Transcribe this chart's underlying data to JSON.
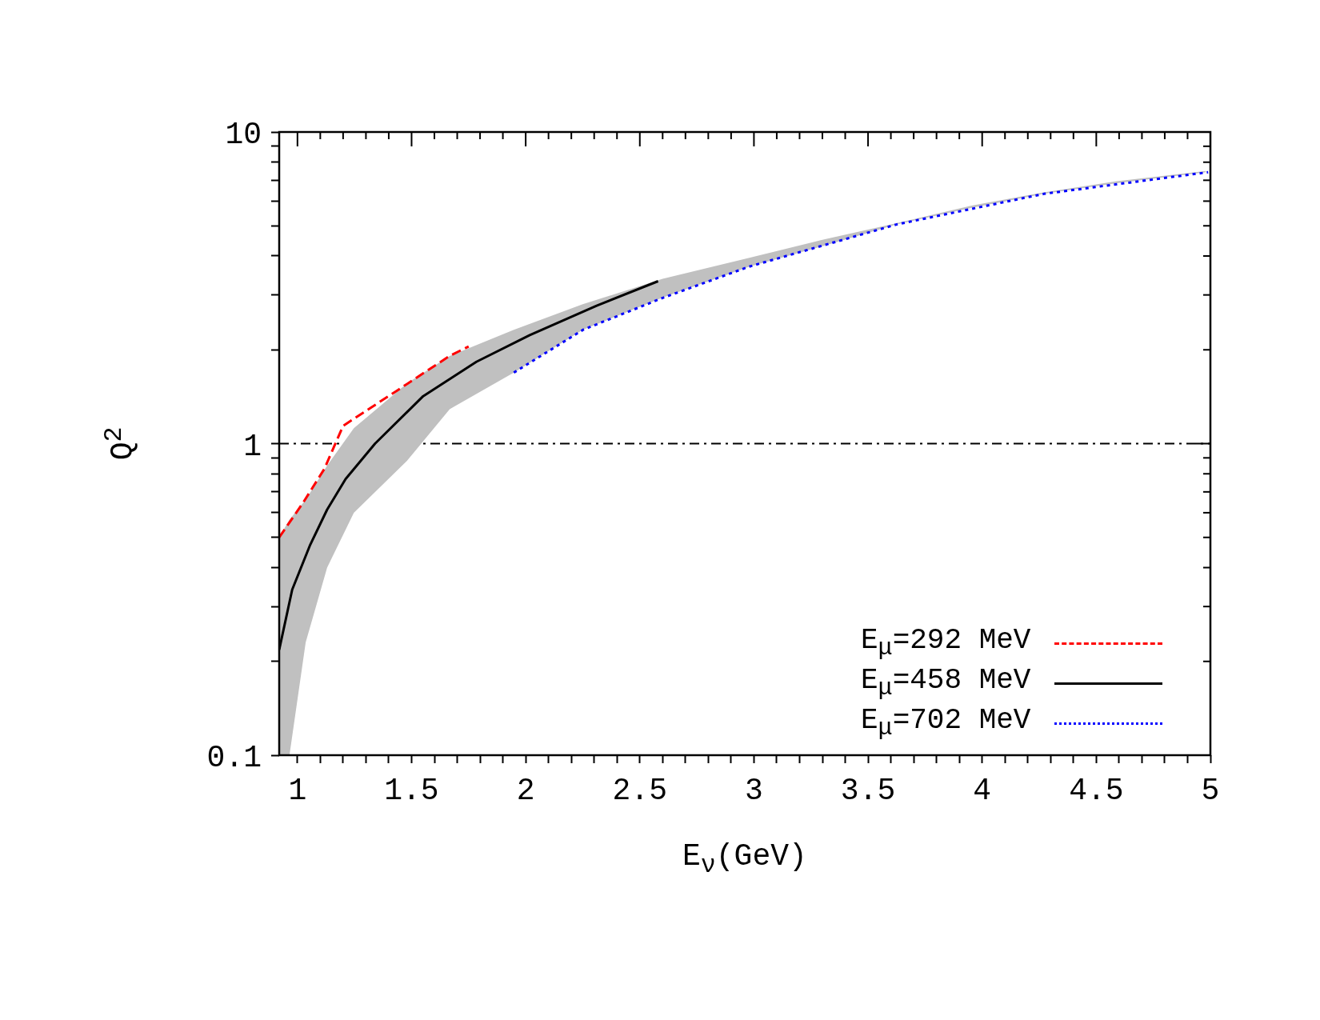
{
  "chart_data": {
    "type": "line",
    "xlabel": "E$_{ν}$(GeV)",
    "ylabel": "Q$^{2}$",
    "log": "y",
    "legend": "bottom right",
    "grid": false,
    "xlim": [
      0.92,
      5
    ],
    "ylim": [
      0.1,
      10
    ],
    "xticks": [
      1,
      {
        "value": 1.1,
        "label": null
      },
      {
        "value": 1.2,
        "label": null
      },
      {
        "value": 1.3,
        "label": null
      },
      {
        "value": 1.4,
        "label": null
      },
      1.5,
      {
        "value": 1.6,
        "label": null
      },
      {
        "value": 1.7,
        "label": null
      },
      {
        "value": 1.8,
        "label": null
      },
      {
        "value": 1.9,
        "label": null
      },
      2,
      {
        "value": 2.1,
        "label": null
      },
      {
        "value": 2.2,
        "label": null
      },
      {
        "value": 2.3,
        "label": null
      },
      {
        "value": 2.4,
        "label": null
      },
      2.5,
      {
        "value": 2.6,
        "label": null
      },
      {
        "value": 2.7,
        "label": null
      },
      {
        "value": 2.8,
        "label": null
      },
      {
        "value": 2.9,
        "label": null
      },
      3,
      {
        "value": 3.1,
        "label": null
      },
      {
        "value": 3.2,
        "label": null
      },
      {
        "value": 3.3,
        "label": null
      },
      {
        "value": 3.4,
        "label": null
      },
      3.5,
      {
        "value": 3.6,
        "label": null
      },
      {
        "value": 3.7,
        "label": null
      },
      {
        "value": 3.8,
        "label": null
      },
      {
        "value": 3.9,
        "label": null
      },
      4,
      {
        "value": 4.1,
        "label": null
      },
      {
        "value": 4.2,
        "label": null
      },
      {
        "value": 4.3,
        "label": null
      },
      {
        "value": 4.4,
        "label": null
      },
      4.5,
      {
        "value": 4.6,
        "label": null
      },
      {
        "value": 4.7,
        "label": null
      },
      {
        "value": 4.8,
        "label": null
      },
      {
        "value": 4.9,
        "label": null
      },
      5
    ],
    "yticks": [
      0.1,
      {
        "value": 0.2,
        "label": null
      },
      {
        "value": 0.3,
        "label": null
      },
      {
        "value": 0.4,
        "label": null
      },
      {
        "value": 0.5,
        "label": null
      },
      {
        "value": 0.6,
        "label": null
      },
      {
        "value": 0.7,
        "label": null
      },
      {
        "value": 0.8,
        "label": null
      },
      {
        "value": 0.9,
        "label": null
      },
      1,
      {
        "value": 2,
        "label": null
      },
      {
        "value": 3,
        "label": null
      },
      {
        "value": 4,
        "label": null
      },
      {
        "value": 5,
        "label": null
      },
      {
        "value": 6,
        "label": null
      },
      {
        "value": 7,
        "label": null
      },
      {
        "value": 8,
        "label": null
      },
      {
        "value": 9,
        "label": null
      },
      10
    ],
    "ref_lines": [
      {
        "axis": "y",
        "value": 1,
        "color": "#000000",
        "line_style": "dashdot"
      }
    ],
    "series": [
      {
        "color": "#c0c0c0",
        "x": [
          0.92,
          0.965,
          1.036,
          1.13,
          1.247,
          1.48,
          1.667,
          1.948,
          2.25,
          2.6,
          2.98,
          3.3,
          3.625,
          3.95,
          4.27,
          4.59,
          4.98
        ],
        "values": [
          null,
          null,
          null,
          null,
          null,
          null,
          null,
          null,
          null,
          null,
          null,
          null,
          null,
          null,
          null,
          null,
          null
        ],
        "upper": [
          0.5,
          0.57,
          0.66,
          0.85,
          1.12,
          1.56,
          1.91,
          2.32,
          2.8,
          3.38,
          3.95,
          4.51,
          5.1,
          5.8,
          6.4,
          6.95,
          7.5
        ],
        "lower": [
          0.1,
          0.1,
          0.23,
          0.4,
          0.6,
          0.88,
          1.29,
          1.69,
          2.32,
          2.94,
          3.7,
          4.3,
          5.05,
          5.7,
          6.33,
          6.85,
          7.43
        ]
      },
      {
        "name": "E$_{μ}$=292 MeV",
        "color": "#ff0000",
        "line_style": "dashed",
        "x": [
          0.92,
          1.024,
          1.118,
          1.2,
          1.434,
          1.666,
          1.75
        ],
        "values": [
          0.5,
          0.645,
          0.83,
          1.14,
          1.476,
          1.91,
          2.05
        ]
      },
      {
        "name": "E$_{μ}$=458 MeV",
        "color": "#000000",
        "line_style": "solid",
        "x": [
          0.92,
          0.977,
          1.054,
          1.13,
          1.211,
          1.34,
          1.551,
          1.784,
          2.018,
          2.311,
          2.58
        ],
        "values": [
          0.218,
          0.34,
          0.47,
          0.614,
          0.77,
          1.0,
          1.42,
          1.83,
          2.23,
          2.77,
          3.32
        ]
      },
      {
        "name": "E$_{μ}$=702 MeV",
        "color": "#0000ff",
        "line_style": "dotted",
        "x": [
          1.948,
          2.252,
          2.603,
          2.98,
          3.625,
          4.27,
          4.99
        ],
        "values": [
          1.69,
          2.32,
          2.94,
          3.7,
          5.05,
          6.33,
          7.43
        ]
      }
    ]
  }
}
